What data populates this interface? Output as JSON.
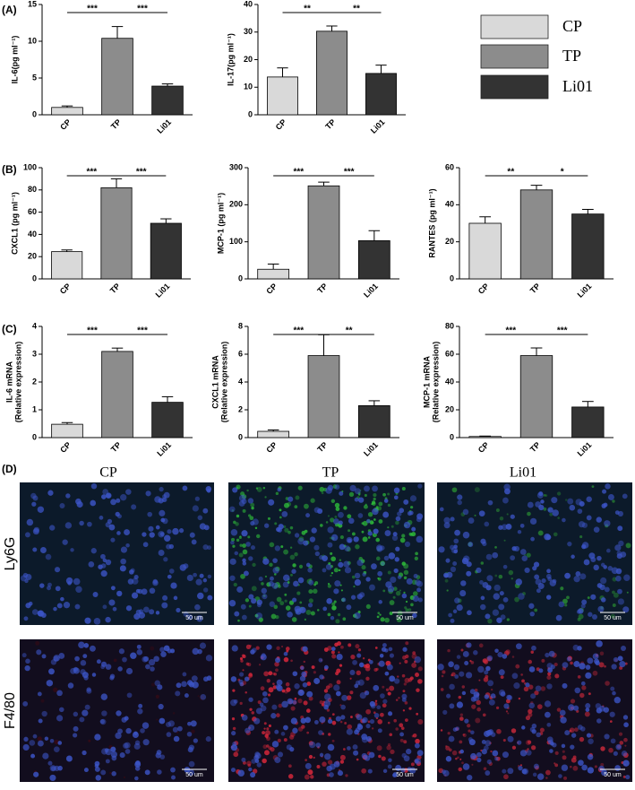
{
  "panels": [
    "(A)",
    "(B)",
    "(C)",
    "(D)"
  ],
  "legend": {
    "entries": [
      {
        "name": "CP",
        "color": "#d9d9d9"
      },
      {
        "name": "TP",
        "color": "#8c8c8c"
      },
      {
        "name": "Li01",
        "color": "#333333"
      }
    ]
  },
  "chart_data": [
    {
      "type": "bar",
      "ylabel": [
        "IL-6(pg ml⁻¹)"
      ],
      "categories": [
        "CP",
        "TP",
        "Li01"
      ],
      "values": [
        1.0,
        10.4,
        3.9
      ],
      "errors": [
        0.2,
        1.6,
        0.3
      ],
      "colors": [
        "#d9d9d9",
        "#8c8c8c",
        "#333333"
      ],
      "ylim": [
        0,
        15
      ],
      "yticks": [
        0,
        5,
        10,
        15
      ],
      "significance": [
        "***",
        "***"
      ]
    },
    {
      "type": "bar",
      "ylabel": [
        "IL-17(pg ml⁻¹)"
      ],
      "categories": [
        "CP",
        "TP",
        "Li01"
      ],
      "values": [
        13.7,
        30.3,
        15.0
      ],
      "errors": [
        3.3,
        1.9,
        3.0
      ],
      "colors": [
        "#d9d9d9",
        "#8c8c8c",
        "#333333"
      ],
      "ylim": [
        0,
        40
      ],
      "yticks": [
        0,
        10,
        20,
        30,
        40
      ],
      "significance": [
        "**",
        "**"
      ]
    },
    {
      "type": "bar",
      "ylabel": [
        "CXCL1 (pg ml⁻¹)"
      ],
      "categories": [
        "CP",
        "TP",
        "Li01"
      ],
      "values": [
        24.5,
        82,
        50
      ],
      "errors": [
        1.5,
        8,
        4
      ],
      "colors": [
        "#d9d9d9",
        "#8c8c8c",
        "#333333"
      ],
      "ylim": [
        0,
        100
      ],
      "yticks": [
        0,
        20,
        40,
        60,
        80,
        100
      ],
      "significance": [
        "***",
        "***"
      ]
    },
    {
      "type": "bar",
      "ylabel": [
        "MCP-1 (pg ml⁻¹)"
      ],
      "categories": [
        "CP",
        "TP",
        "Li01"
      ],
      "values": [
        26,
        251,
        103
      ],
      "errors": [
        14,
        10,
        27
      ],
      "colors": [
        "#d9d9d9",
        "#8c8c8c",
        "#333333"
      ],
      "ylim": [
        0,
        300
      ],
      "yticks": [
        0,
        100,
        200,
        300
      ],
      "significance": [
        "***",
        "***"
      ]
    },
    {
      "type": "bar",
      "ylabel": [
        "RANTES (pg ml⁻¹)"
      ],
      "categories": [
        "CP",
        "TP",
        "Li01"
      ],
      "values": [
        30,
        48,
        35
      ],
      "errors": [
        3.5,
        2.5,
        2.5
      ],
      "colors": [
        "#d9d9d9",
        "#8c8c8c",
        "#333333"
      ],
      "ylim": [
        0,
        60
      ],
      "yticks": [
        0,
        20,
        40,
        60
      ],
      "significance": [
        "**",
        "*"
      ]
    },
    {
      "type": "bar",
      "ylabel": [
        "IL-6 mRNA",
        "(Relative expression)"
      ],
      "categories": [
        "CP",
        "TP",
        "Li01"
      ],
      "values": [
        0.48,
        3.1,
        1.27
      ],
      "errors": [
        0.06,
        0.12,
        0.2
      ],
      "colors": [
        "#d9d9d9",
        "#8c8c8c",
        "#333333"
      ],
      "ylim": [
        0,
        4
      ],
      "yticks": [
        0,
        1,
        2,
        3,
        4
      ],
      "significance": [
        "***",
        "***"
      ]
    },
    {
      "type": "bar",
      "ylabel": [
        "CXCL1 mRNA",
        "(Relative expression)"
      ],
      "categories": [
        "CP",
        "TP",
        "Li01"
      ],
      "values": [
        0.45,
        5.9,
        2.3
      ],
      "errors": [
        0.1,
        1.5,
        0.35
      ],
      "colors": [
        "#d9d9d9",
        "#8c8c8c",
        "#333333"
      ],
      "ylim": [
        0,
        8
      ],
      "yticks": [
        0,
        2,
        4,
        6,
        8
      ],
      "significance": [
        "***",
        "**"
      ]
    },
    {
      "type": "bar",
      "ylabel": [
        "MCP-1 mRNA",
        "(Relative expression)"
      ],
      "categories": [
        "CP",
        "TP",
        "Li01"
      ],
      "values": [
        0.8,
        59,
        22
      ],
      "errors": [
        0.3,
        5.5,
        4
      ],
      "colors": [
        "#d9d9d9",
        "#8c8c8c",
        "#333333"
      ],
      "ylim": [
        0,
        80
      ],
      "yticks": [
        0,
        20,
        40,
        60,
        80
      ],
      "significance": [
        "***",
        "***"
      ]
    }
  ],
  "micrographs": {
    "columns": [
      "CP",
      "TP",
      "Li01"
    ],
    "rows": [
      "Ly6G",
      "F4/80"
    ],
    "scale_bar": "50 um"
  }
}
